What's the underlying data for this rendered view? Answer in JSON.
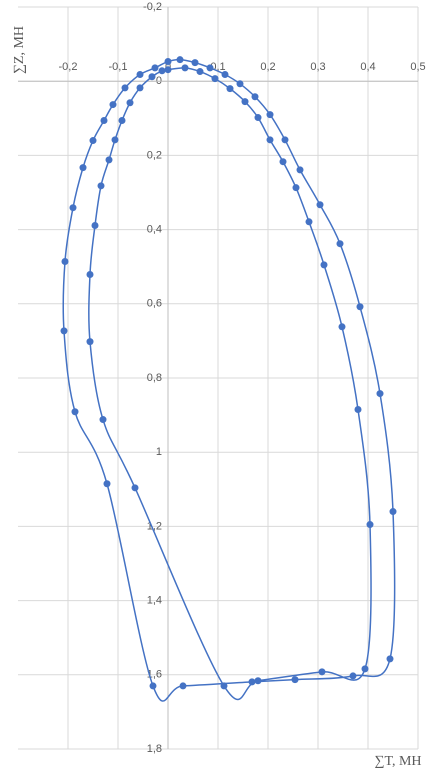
{
  "chart_data": {
    "type": "scatter",
    "x_label": "∑T, МН",
    "y_label": "∑Z, МН",
    "xlim": [
      -0.3,
      0.5
    ],
    "ylim": [
      -0.2,
      1.8
    ],
    "y_inverted": true,
    "grid": true,
    "smooth": true,
    "xticks": [
      {
        "value": -0.2,
        "label": "-0,2"
      },
      {
        "value": -0.1,
        "label": "-0,1"
      },
      0,
      {
        "value": 0.1,
        "label": "0,1"
      },
      {
        "value": 0.2,
        "label": "0,2"
      },
      {
        "value": 0.3,
        "label": "0,3"
      },
      {
        "value": 0.4,
        "label": "0,4"
      },
      {
        "value": 0.5,
        "label": "0,5"
      }
    ],
    "yticks": [
      {
        "value": -0.2,
        "label": "-0,2"
      },
      0,
      {
        "value": 0.2,
        "label": "0,2"
      },
      {
        "value": 0.4,
        "label": "0,4"
      },
      {
        "value": 0.6,
        "label": "0,6"
      },
      {
        "value": 0.8,
        "label": "0,8"
      },
      1,
      {
        "value": 1.2,
        "label": "1,2"
      },
      {
        "value": 1.4,
        "label": "1,4"
      },
      {
        "value": 1.6,
        "label": "1,6"
      },
      {
        "value": 1.8,
        "label": "1,8"
      }
    ],
    "series": [
      {
        "color": "#4472c4",
        "x": [
          0,
          0.024,
          0.054,
          0.084,
          0.114,
          0.144,
          0.174,
          0.204,
          0.234,
          0.264,
          0.304,
          0.344,
          0.384,
          0.424,
          0.45,
          0.444,
          0.37,
          0.254,
          0.168,
          0.03,
          -0.03,
          -0.122,
          -0.186,
          -0.208,
          -0.206,
          -0.19,
          -0.17,
          -0.15,
          -0.128,
          -0.11,
          -0.086,
          -0.056,
          -0.026
        ],
        "values": [
          -0.053,
          -0.058,
          -0.05,
          -0.036,
          -0.018,
          0.007,
          0.042,
          0.09,
          0.158,
          0.239,
          0.333,
          0.438,
          0.608,
          0.842,
          1.16,
          1.557,
          1.603,
          1.613,
          1.619,
          1.63,
          1.63,
          1.085,
          0.891,
          0.673,
          0.486,
          0.341,
          0.233,
          0.16,
          0.106,
          0.063,
          0.018,
          -0.018,
          -0.036
        ]
      },
      {
        "color": "#4472c4",
        "x": [
          0,
          0.034,
          0.064,
          0.094,
          0.124,
          0.154,
          0.18,
          0.204,
          0.23,
          0.256,
          0.282,
          0.312,
          0.348,
          0.38,
          0.404,
          0.394,
          0.308,
          0.18,
          0.112,
          -0.066,
          -0.13,
          -0.156,
          -0.156,
          -0.146,
          -0.134,
          -0.118,
          -0.106,
          -0.092,
          -0.076,
          -0.056,
          -0.032,
          -0.012
        ],
        "values": [
          -0.031,
          -0.036,
          -0.026,
          -0.007,
          0.02,
          0.055,
          0.098,
          0.158,
          0.217,
          0.287,
          0.379,
          0.495,
          0.662,
          0.885,
          1.195,
          1.584,
          1.592,
          1.616,
          1.63,
          1.096,
          0.912,
          0.702,
          0.521,
          0.389,
          0.282,
          0.212,
          0.158,
          0.106,
          0.058,
          0.018,
          -0.012,
          -0.028
        ]
      }
    ]
  }
}
